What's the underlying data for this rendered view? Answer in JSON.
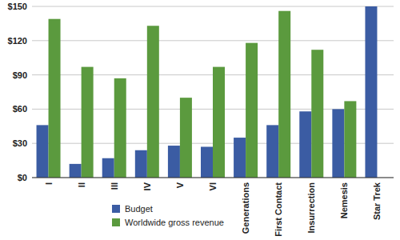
{
  "chart_data": {
    "type": "bar",
    "categories": [
      "I",
      "II",
      "III",
      "IV",
      "V",
      "VI",
      "Generations",
      "First Contact",
      "Insurrection",
      "Nemesis",
      "Star Trek"
    ],
    "series": [
      {
        "name": "Budget",
        "color": "#3b5ca3",
        "values": [
          46,
          12,
          17,
          24,
          28,
          27,
          35,
          46,
          58,
          60,
          150
        ]
      },
      {
        "name": "Worldwide gross revenue",
        "color": "#5b9a3e",
        "values": [
          139,
          97,
          87,
          133,
          70,
          97,
          118,
          146,
          112,
          67,
          null
        ]
      }
    ],
    "ylim": [
      0,
      150
    ],
    "yticks": [
      {
        "value": 0,
        "label": "$0"
      },
      {
        "value": 30,
        "label": "$30"
      },
      {
        "value": 60,
        "label": "$60"
      },
      {
        "value": 90,
        "label": "$90"
      },
      {
        "value": 120,
        "label": "$120"
      },
      {
        "value": 150,
        "label": "$150"
      }
    ],
    "grid": true,
    "legend": "bottom"
  }
}
